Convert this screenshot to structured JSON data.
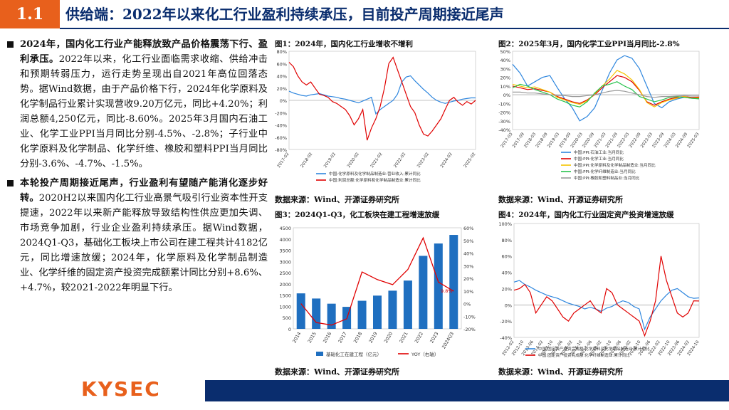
{
  "header": {
    "section_number": "1.1",
    "title": "供给端：2022年以来化工行业盈利持续承压，目前投产周期接近尾声"
  },
  "bullets": [
    {
      "lead": "2024年，国内化工行业产能释放致产品价格震荡下行、盈利承压。",
      "body": "2022年以来，化工行业面临需求收缩、供给冲击和预期转弱压力，运行走势呈现出自2021年高位回落态势。据Wind数据，由于产品价格下行，2024年化学原料及化学制品行业累计实现营收9.20万亿元，同比+4.20%；利润总额4,250亿元，同比-8.60%。2025年3月国内石油工业、化学工业PPI当月同比分别-4.5%、-2.8%；子行业中化学原料及化学制品、化学纤维、橡胶和塑料PPI当月同比分别-3.6%、-4.7%、-1.5%。"
    },
    {
      "lead": "本轮投产周期接近尾声，行业盈利有望随产能消化逐步好转。",
      "body": "2020H2以来国内化工行业高景气吸引行业资本性开支提速，2022年以来新产能释放导致结构性供应更加失调、市场竞争加剧，行业企业盈利持续承压。据Wind数据，2024Q1-Q3，基础化工板块上市公司在建工程共计4182亿元，同比增速放缓；2024年，化学原料及化学制品制造业、化学纤维的固定资产投资完成额累计同比分别+8.6%、+4.7%，较2021-2022年明显下行。"
    }
  ],
  "figures": {
    "fig1": {
      "title": "图1：2024年，国内化工行业增收不增利",
      "source": "数据来源：Wind、开源证券研究所"
    },
    "fig2": {
      "title": "图2：2025年3月，国内化学工业PPI当月同比-2.8%",
      "source": "数据来源：Wind、开源证券研究所"
    },
    "fig3": {
      "title": "图3：2024Q1-Q3，化工板块在建工程增速放缓",
      "source": "数据来源：Wind、开源证券研究所"
    },
    "fig4": {
      "title": "图4：2024年，国内化工行业固定资产投资增速放缓",
      "source": "数据来源：Wind、开源证券研究所"
    }
  },
  "footer": {
    "logo_text": "KYSEC"
  },
  "colors": {
    "accent": "#e8601c",
    "navy": "#0a2d6e",
    "bar_blue": "#1f6fc0",
    "line_red": "#e00000"
  },
  "chart_data": [
    {
      "id": "fig1",
      "type": "line",
      "ylim": [
        -80,
        80
      ],
      "yticks": [
        "80%",
        "60%",
        "40%",
        "20%",
        "0%",
        "-20%",
        "-40%",
        "-60%",
        "-80%"
      ],
      "xticks": [
        "2017-02",
        "2018-02",
        "2019-02",
        "2020-02",
        "2021-02",
        "2022-02",
        "2023-02",
        "2024-02",
        "2025-02"
      ],
      "series": [
        {
          "name": "中国:化学原料及化学制品制造业:营业收入:累计同比",
          "color": "#2e86de",
          "values": [
            15,
            12,
            10,
            8,
            7,
            9,
            10,
            11,
            9,
            7,
            6,
            5,
            3,
            2,
            0,
            -2,
            -4,
            -1,
            2,
            5,
            -22,
            -15,
            -10,
            -5,
            0,
            10,
            30,
            38,
            40,
            32,
            25,
            18,
            12,
            5,
            0,
            -3,
            -5,
            -3,
            -1,
            0,
            2,
            3,
            4,
            4
          ]
        },
        {
          "name": "中国:利润总额:化学原料和化学制品制造业:累计同比",
          "color": "#e00000",
          "values": [
            62,
            55,
            40,
            30,
            25,
            30,
            20,
            10,
            8,
            5,
            -2,
            -5,
            -10,
            -15,
            -25,
            -40,
            -30,
            -15,
            -65,
            -45,
            -30,
            -10,
            20,
            60,
            70,
            50,
            30,
            10,
            -10,
            -20,
            -40,
            -55,
            -58,
            -50,
            -40,
            -30,
            -15,
            0,
            5,
            -3,
            -8,
            -2,
            -6,
            0
          ]
        }
      ]
    },
    {
      "id": "fig2",
      "type": "line",
      "ylim": [
        -40,
        50
      ],
      "yticks": [
        "50%",
        "40%",
        "30%",
        "20%",
        "10%",
        "0%",
        "-10%",
        "-20%",
        "-30%",
        "-40%"
      ],
      "xticks": [
        "2017-03",
        "2017-09",
        "2018-03",
        "2018-09",
        "2019-03",
        "2019-09",
        "2020-03",
        "2020-09",
        "2021-03",
        "2021-09",
        "2022-03",
        "2022-09",
        "2023-03",
        "2023-09",
        "2024-03",
        "2024-09",
        "2025-03"
      ],
      "series": [
        {
          "name": "中国:PPI:石油工业:当月同比",
          "color": "#2e86de",
          "values": [
            35,
            25,
            10,
            15,
            20,
            22,
            8,
            -5,
            -15,
            -30,
            -25,
            -15,
            5,
            25,
            40,
            45,
            42,
            30,
            10,
            -10,
            -15,
            -8,
            -5,
            -3,
            -4,
            -4.5
          ]
        },
        {
          "name": "中国:PPI:化学工业:当月同比",
          "color": "#e00000",
          "values": [
            10,
            8,
            6,
            7,
            5,
            3,
            -2,
            -5,
            -8,
            -10,
            -6,
            0,
            8,
            15,
            22,
            20,
            15,
            5,
            -8,
            -12,
            -8,
            -5,
            -3,
            -2,
            -3,
            -2.8
          ]
        },
        {
          "name": "中国:PPI:化学原料及化学制品制造业:当月同比",
          "color": "#f5c400",
          "values": [
            12,
            10,
            8,
            9,
            6,
            3,
            -3,
            -6,
            -9,
            -11,
            -7,
            1,
            10,
            18,
            28,
            24,
            17,
            6,
            -9,
            -14,
            -9,
            -6,
            -4,
            -2,
            -4,
            -3.6
          ]
        },
        {
          "name": "中国:PPI:化学纤维制造业:当月同比",
          "color": "#27c24c",
          "values": [
            8,
            12,
            10,
            6,
            3,
            0,
            -5,
            -8,
            -12,
            -14,
            -8,
            2,
            10,
            12,
            15,
            10,
            6,
            -2,
            -5,
            -8,
            -6,
            -3,
            -2,
            -3,
            -4,
            -4.7
          ]
        },
        {
          "name": "中国:PPI:橡胶和塑料制品业:当月同比",
          "color": "#999999",
          "values": [
            3,
            3,
            2,
            2,
            1,
            0,
            -1,
            -1,
            -2,
            -2,
            -1,
            0,
            2,
            4,
            5,
            4,
            2,
            0,
            -2,
            -3,
            -2,
            -2,
            -1.5,
            -1,
            -1.5,
            -1.5
          ]
        }
      ]
    },
    {
      "id": "fig3",
      "type": "bar",
      "categories": [
        "2014",
        "2015",
        "2016",
        "2017",
        "2018",
        "2019",
        "2020",
        "2021",
        "2022",
        "2023",
        "2024Q3"
      ],
      "ylim": [
        0,
        4500
      ],
      "y2lim": [
        -20,
        60
      ],
      "yticks": [
        "4500",
        "4000",
        "3500",
        "3000",
        "2500",
        "2000",
        "1500",
        "1000",
        "500",
        "0"
      ],
      "y2ticks": [
        "60%",
        "50%",
        "40%",
        "30%",
        "20%",
        "10%",
        "0%",
        "-10%",
        "-20%"
      ],
      "series": [
        {
          "name": "基础化工在建工程（亿元）",
          "values": [
            1580,
            1350,
            1120,
            980,
            1250,
            1480,
            1700,
            2150,
            3250,
            3800,
            4182
          ]
        },
        {
          "name": "YOY（右轴）",
          "values": [
            0,
            -15,
            -17,
            -12,
            25,
            19,
            15,
            27,
            52,
            17,
            9.8
          ]
        }
      ],
      "data_label": "9.8%"
    },
    {
      "id": "fig4",
      "type": "line",
      "ylim": [
        -40,
        100
      ],
      "yticks": [
        "100%",
        "80%",
        "60%",
        "40%",
        "20%",
        "0%",
        "-20%",
        "-40%"
      ],
      "xticks": [
        "2012-02",
        "2012-10",
        "2013-06",
        "2014-02",
        "2014-10",
        "2015-06",
        "2016-02",
        "2016-10",
        "2017-06",
        "2018-02",
        "2018-10",
        "2019-06",
        "2020-02",
        "2020-10",
        "2021-06",
        "2022-02",
        "2022-10",
        "2023-06",
        "2024-02",
        "2024-10"
      ],
      "series": [
        {
          "name": "中国:固定资产投资完成额:化学原料及化学制品制造业:累计同比",
          "color": "#2e86de",
          "values": [
            28,
            30,
            25,
            22,
            18,
            15,
            12,
            10,
            8,
            5,
            2,
            0,
            -2,
            -5,
            -3,
            -5,
            -8,
            -4,
            -2,
            2,
            5,
            3,
            -2,
            -5,
            -30,
            -15,
            -5,
            5,
            12,
            18,
            20,
            15,
            10,
            8,
            8.6
          ]
        },
        {
          "name": "中国:固定资产投资完成额:化学纤维制造业:累计同比",
          "color": "#e00000",
          "values": [
            18,
            20,
            25,
            15,
            -10,
            0,
            10,
            5,
            -5,
            -15,
            -20,
            -10,
            -5,
            0,
            5,
            -5,
            -10,
            20,
            15,
            0,
            -5,
            -10,
            -15,
            -20,
            -38,
            -20,
            5,
            60,
            30,
            10,
            -10,
            -15,
            -10,
            5,
            4.7
          ]
        }
      ]
    }
  ]
}
